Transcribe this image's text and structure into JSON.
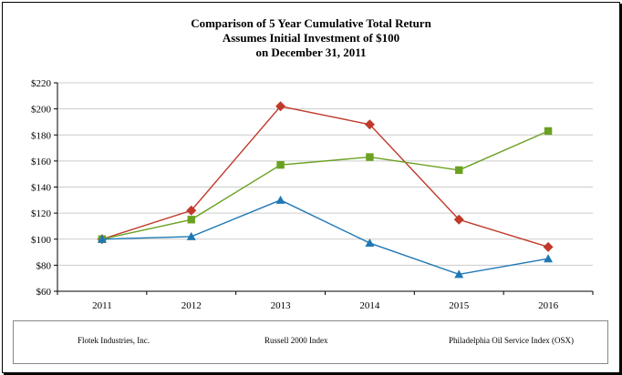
{
  "chart_data": {
    "type": "line",
    "title": [
      "Comparison of 5 Year Cumulative Total Return",
      "Assumes Initial Investment of $100",
      "on December 31, 2011"
    ],
    "categories": [
      "2011",
      "2012",
      "2013",
      "2014",
      "2015",
      "2016"
    ],
    "ylim": [
      60,
      220
    ],
    "yticks": [
      60,
      80,
      100,
      120,
      140,
      160,
      180,
      200,
      220
    ],
    "ytick_prefix": "$",
    "grid": "horizontal",
    "legend": "bottom",
    "series": [
      {
        "name": "Flotek Industries, Inc.",
        "color": "#c0392b",
        "marker": "diamond",
        "values": [
          100,
          122,
          202,
          188,
          115,
          94
        ]
      },
      {
        "name": "Russell 2000 Index",
        "color": "#6aa121",
        "marker": "square",
        "values": [
          100,
          115,
          157,
          163,
          153,
          183
        ]
      },
      {
        "name": "Philadelphia Oil Service Index (OSX)",
        "color": "#1f78b4",
        "marker": "triangle",
        "values": [
          100,
          102,
          130,
          97,
          73,
          85
        ]
      }
    ]
  }
}
